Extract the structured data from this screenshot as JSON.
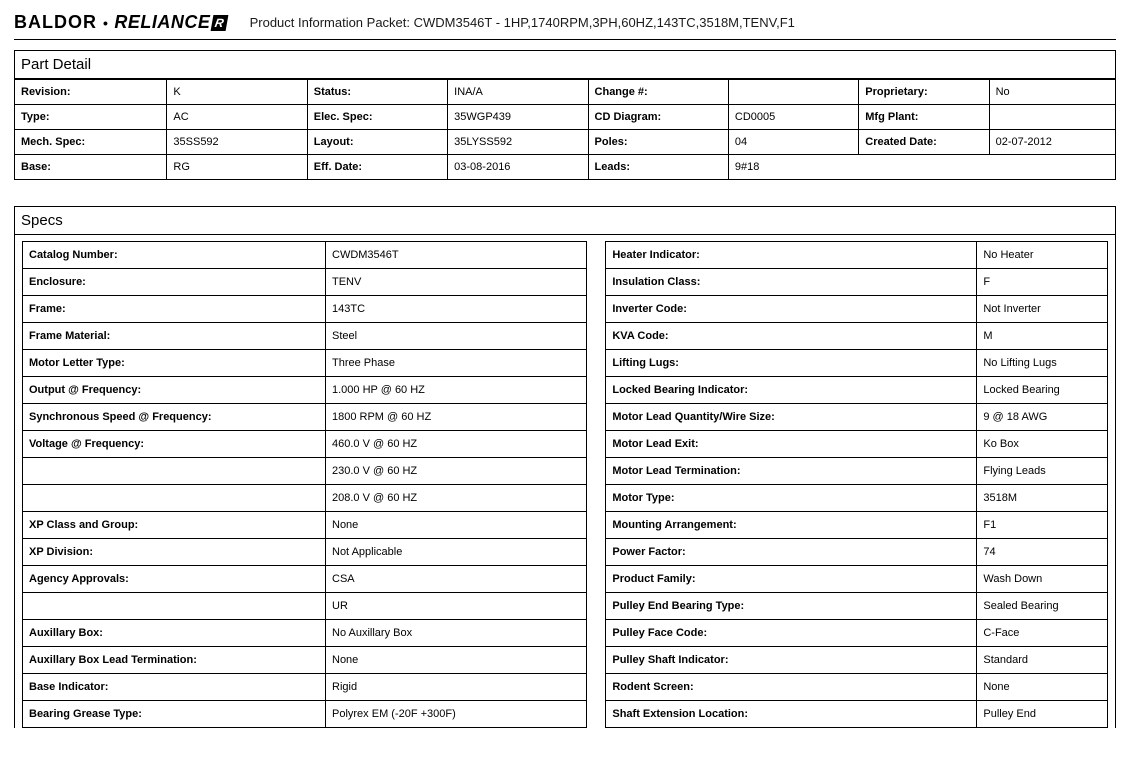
{
  "header": {
    "brand_baldor": "BALDOR",
    "brand_dot": "•",
    "brand_reliance": "RELIANCE",
    "brand_r": "R",
    "title": "Product Information Packet: CWDM3546T - 1HP,1740RPM,3PH,60HZ,143TC,3518M,TENV,F1"
  },
  "part_detail": {
    "title": "Part Detail",
    "rows": [
      [
        {
          "label": "Revision:",
          "value": "K"
        },
        {
          "label": "Status:",
          "value": "INA/A"
        },
        {
          "label": "Change #:",
          "value": ""
        },
        {
          "label": "Proprietary:",
          "value": "No"
        }
      ],
      [
        {
          "label": "Type:",
          "value": "AC"
        },
        {
          "label": "Elec. Spec:",
          "value": "35WGP439"
        },
        {
          "label": "CD Diagram:",
          "value": "CD0005"
        },
        {
          "label": "Mfg Plant:",
          "value": ""
        }
      ],
      [
        {
          "label": "Mech. Spec:",
          "value": "35SS592"
        },
        {
          "label": "Layout:",
          "value": "35LYSS592"
        },
        {
          "label": "Poles:",
          "value": "04"
        },
        {
          "label": "Created Date:",
          "value": "02-07-2012"
        }
      ],
      [
        {
          "label": "Base:",
          "value": "RG"
        },
        {
          "label": "Eff. Date:",
          "value": "03-08-2016"
        },
        {
          "label": "Leads:",
          "value": "9#18"
        },
        {
          "label": "",
          "value": ""
        }
      ]
    ],
    "col_widths": [
      "152px",
      "140px",
      "140px",
      "140px",
      "140px",
      "130px",
      "130px",
      "126px"
    ]
  },
  "specs": {
    "title": "Specs",
    "left": [
      {
        "label": "Catalog Number:",
        "value": "CWDM3546T"
      },
      {
        "label": "Enclosure:",
        "value": "TENV"
      },
      {
        "label": "Frame:",
        "value": "143TC"
      },
      {
        "label": "Frame Material:",
        "value": "Steel"
      },
      {
        "label": "Motor Letter Type:",
        "value": "Three Phase"
      },
      {
        "label": "Output @ Frequency:",
        "value": "1.000 HP @ 60 HZ"
      },
      {
        "label": "Synchronous Speed @ Frequency:",
        "value": "1800 RPM @ 60 HZ"
      },
      {
        "label": "Voltage @ Frequency:",
        "value": "460.0 V @ 60 HZ"
      },
      {
        "label": "",
        "value": "230.0 V @ 60 HZ"
      },
      {
        "label": "",
        "value": "208.0 V @ 60 HZ"
      },
      {
        "label": "XP Class and Group:",
        "value": "None"
      },
      {
        "label": "XP Division:",
        "value": "Not Applicable"
      },
      {
        "label": "Agency Approvals:",
        "value": "CSA"
      },
      {
        "label": "",
        "value": "UR"
      },
      {
        "label": "Auxillary Box:",
        "value": "No Auxillary Box"
      },
      {
        "label": "Auxillary Box Lead Termination:",
        "value": "None"
      },
      {
        "label": "Base Indicator:",
        "value": "Rigid"
      },
      {
        "label": "Bearing Grease Type:",
        "value": "Polyrex EM (-20F +300F)"
      }
    ],
    "right": [
      {
        "label": "Heater Indicator:",
        "value": "No Heater"
      },
      {
        "label": "Insulation Class:",
        "value": "F"
      },
      {
        "label": "Inverter Code:",
        "value": "Not Inverter"
      },
      {
        "label": "KVA Code:",
        "value": "M"
      },
      {
        "label": "Lifting Lugs:",
        "value": "No Lifting Lugs"
      },
      {
        "label": "Locked Bearing Indicator:",
        "value": "Locked Bearing"
      },
      {
        "label": "Motor Lead Quantity/Wire Size:",
        "value": "9 @ 18 AWG"
      },
      {
        "label": "Motor Lead Exit:",
        "value": "Ko Box"
      },
      {
        "label": "Motor Lead Termination:",
        "value": "Flying Leads"
      },
      {
        "label": "Motor Type:",
        "value": "3518M"
      },
      {
        "label": "Mounting Arrangement:",
        "value": "F1"
      },
      {
        "label": "Power Factor:",
        "value": "74"
      },
      {
        "label": "Product Family:",
        "value": "Wash Down"
      },
      {
        "label": "Pulley End Bearing Type:",
        "value": "Sealed Bearing"
      },
      {
        "label": "Pulley Face Code:",
        "value": "C-Face"
      },
      {
        "label": "Pulley Shaft Indicator:",
        "value": "Standard"
      },
      {
        "label": "Rodent Screen:",
        "value": "None"
      },
      {
        "label": "Shaft Extension Location:",
        "value": "Pulley End"
      }
    ]
  }
}
